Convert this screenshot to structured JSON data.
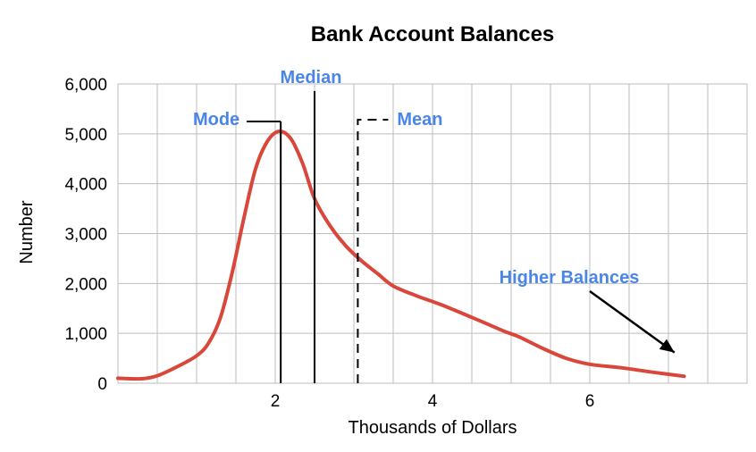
{
  "chart_data": {
    "type": "line",
    "title": "Bank Account Balances",
    "xlabel": "Thousands of Dollars",
    "ylabel": "Number",
    "xlim": [
      0,
      8
    ],
    "ylim": [
      0,
      6000
    ],
    "x_ticks": [
      {
        "value": 2,
        "label": "2"
      },
      {
        "value": 4,
        "label": "4"
      },
      {
        "value": 6,
        "label": "6"
      }
    ],
    "y_ticks": [
      {
        "value": 0,
        "label": "0"
      },
      {
        "value": 1000,
        "label": "1,000"
      },
      {
        "value": 2000,
        "label": "2,000"
      },
      {
        "value": 3000,
        "label": "3,000"
      },
      {
        "value": 4000,
        "label": "4,000"
      },
      {
        "value": 5000,
        "label": "5,000"
      },
      {
        "value": 6000,
        "label": "6,000"
      }
    ],
    "grid": true,
    "series": [
      {
        "color": "#d9473b",
        "points": [
          [
            0.0,
            100
          ],
          [
            0.3,
            90
          ],
          [
            0.5,
            150
          ],
          [
            0.75,
            330
          ],
          [
            1.0,
            550
          ],
          [
            1.15,
            800
          ],
          [
            1.3,
            1300
          ],
          [
            1.45,
            2200
          ],
          [
            1.6,
            3300
          ],
          [
            1.75,
            4300
          ],
          [
            1.9,
            4850
          ],
          [
            2.05,
            5050
          ],
          [
            2.2,
            4900
          ],
          [
            2.35,
            4400
          ],
          [
            2.5,
            3700
          ],
          [
            2.7,
            3150
          ],
          [
            2.9,
            2750
          ],
          [
            3.1,
            2450
          ],
          [
            3.3,
            2200
          ],
          [
            3.5,
            1950
          ],
          [
            3.8,
            1750
          ],
          [
            4.1,
            1580
          ],
          [
            4.5,
            1320
          ],
          [
            4.9,
            1050
          ],
          [
            5.1,
            930
          ],
          [
            5.4,
            700
          ],
          [
            5.7,
            500
          ],
          [
            6.0,
            380
          ],
          [
            6.4,
            310
          ],
          [
            6.8,
            220
          ],
          [
            7.2,
            140
          ]
        ]
      }
    ],
    "markers": [
      {
        "label": "Mode",
        "value": 2.07,
        "style": "solid",
        "color": "#4a86e8"
      },
      {
        "label": "Median",
        "value": 2.5,
        "style": "solid",
        "color": "#4a86e8"
      },
      {
        "label": "Mean",
        "value": 3.05,
        "style": "dashed",
        "color": "#4a86e8"
      }
    ],
    "annotations": [
      {
        "text": "Higher Balances",
        "color": "#4a86e8",
        "arrow_to": [
          7.1,
          150
        ]
      }
    ]
  }
}
